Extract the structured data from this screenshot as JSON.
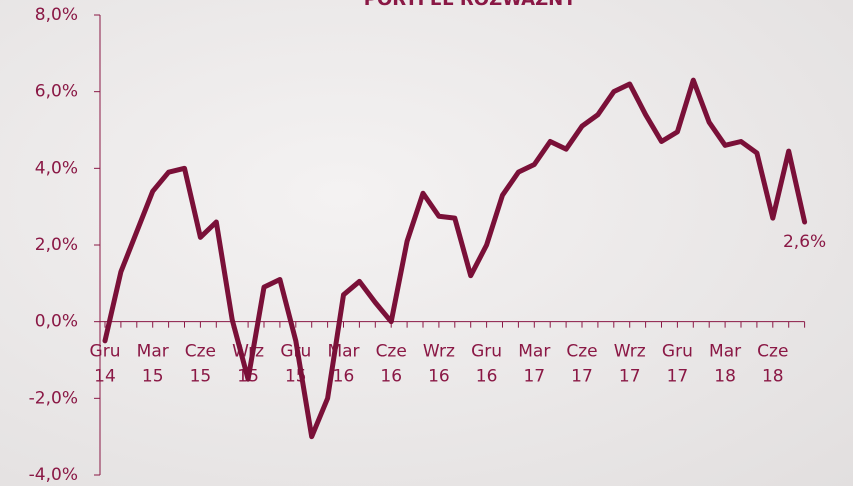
{
  "chart_data": {
    "type": "line",
    "title": "PORTFEL ROZWAŻNY",
    "categories": [
      "Gru 14",
      null,
      null,
      "Mar 15",
      null,
      null,
      "Cze 15",
      null,
      null,
      "Wrz 15",
      null,
      null,
      "Gru 15",
      null,
      null,
      "Mar 16",
      null,
      null,
      "Cze 16",
      null,
      null,
      "Wrz 16",
      null,
      null,
      "Gru 16",
      null,
      null,
      "Mar 17",
      null,
      null,
      "Cze 17",
      null,
      null,
      "Wrz 17",
      null,
      null,
      "Gru 17",
      null,
      null,
      "Mar 18",
      null,
      null,
      "Cze 18",
      null,
      null
    ],
    "series": [
      {
        "color": "#7a1038",
        "values": [
          -0.5,
          1.3,
          2.35,
          3.4,
          3.9,
          4.0,
          2.2,
          2.6,
          0.05,
          -1.5,
          0.9,
          1.1,
          -0.5,
          -3.0,
          -2.0,
          0.7,
          1.05,
          0.5,
          0.0,
          2.1,
          3.35,
          2.75,
          2.7,
          1.2,
          2.0,
          3.3,
          3.9,
          4.1,
          4.7,
          4.5,
          5.1,
          5.4,
          6.0,
          6.2,
          5.4,
          4.7,
          4.95,
          6.3,
          5.2,
          4.6,
          4.7,
          4.4,
          2.7,
          4.45,
          2.6
        ],
        "value_labels": [
          null,
          null,
          null,
          null,
          null,
          null,
          null,
          null,
          null,
          null,
          null,
          null,
          null,
          null,
          null,
          null,
          null,
          null,
          null,
          null,
          null,
          null,
          null,
          null,
          null,
          null,
          null,
          null,
          null,
          null,
          null,
          null,
          null,
          null,
          null,
          null,
          null,
          null,
          null,
          null,
          null,
          null,
          null,
          null,
          "2,6%"
        ]
      }
    ],
    "ylim": [
      -4,
      8
    ],
    "yticks": [
      {
        "value": -4,
        "label": "-4,0%"
      },
      {
        "value": -2,
        "label": "-2,0%"
      },
      {
        "value": 0,
        "label": "0,0%"
      },
      {
        "value": 2,
        "label": "2,0%"
      },
      {
        "value": 4,
        "label": "4,0%"
      },
      {
        "value": 6,
        "label": "6,0%"
      },
      {
        "value": 8,
        "label": "8,0%"
      }
    ]
  }
}
